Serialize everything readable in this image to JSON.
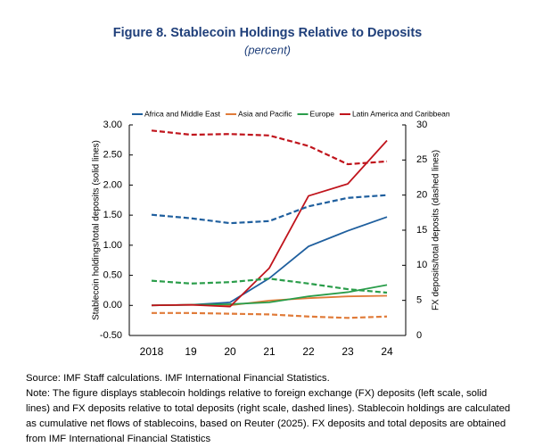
{
  "chart_data": {
    "type": "line",
    "title": "Figure 8. Stablecoin Holdings Relative to Deposits",
    "subtitle": "(percent)",
    "y_label": "Stablecoin holdings/total deposits (solid lines)",
    "y2_label": "FX deposits/total deposits (dashed lines)",
    "categories": [
      "2018",
      "19",
      "20",
      "21",
      "22",
      "23",
      "24"
    ],
    "ylim": [
      -0.5,
      3.0
    ],
    "yticks": [
      {
        "value": -0.5,
        "label": "-0.50"
      },
      {
        "value": 0,
        "label": "0.00"
      },
      {
        "value": 0.5,
        "label": "0.50"
      },
      {
        "value": 1.0,
        "label": "1.00"
      },
      {
        "value": 1.5,
        "label": "1.50"
      },
      {
        "value": 2.0,
        "label": "2.00"
      },
      {
        "value": 2.5,
        "label": "2.50"
      },
      {
        "value": 3.0,
        "label": "3.00"
      }
    ],
    "y2lim": [
      0,
      30
    ],
    "y2ticks": [
      0,
      5,
      10,
      15,
      20,
      25,
      30
    ],
    "legend": "top",
    "series": [
      {
        "name": "Africa and Middle East",
        "color": "#1f5f9e",
        "values": [
          0,
          0.01,
          0.05,
          0.45,
          0.98,
          1.24,
          1.47
        ]
      },
      {
        "name": "Asia and Pacific",
        "color": "#e07b39",
        "values": [
          0,
          0.01,
          0.0,
          0.08,
          0.12,
          0.15,
          0.16
        ]
      },
      {
        "name": "Europe",
        "color": "#2a9d4a",
        "values": [
          0,
          0.01,
          0.02,
          0.05,
          0.15,
          0.22,
          0.34
        ]
      },
      {
        "name": "Latin America and Caribbean",
        "color": "#c0141c",
        "values": [
          0,
          0.01,
          -0.02,
          0.62,
          1.82,
          2.02,
          2.74
        ]
      },
      {
        "color": "#1f5f9e",
        "axis": "y2",
        "dashed": true,
        "values": [
          17.2,
          16.7,
          16.0,
          16.3,
          18.4,
          19.6,
          20.0
        ]
      },
      {
        "color": "#e07b39",
        "axis": "y2",
        "dashed": true,
        "values": [
          3.2,
          3.2,
          3.1,
          3.0,
          2.7,
          2.5,
          2.7
        ]
      },
      {
        "color": "#2a9d4a",
        "axis": "y2",
        "dashed": true,
        "values": [
          7.8,
          7.4,
          7.6,
          8.1,
          7.4,
          6.6,
          6.1
        ]
      },
      {
        "color": "#c0141c",
        "axis": "y2",
        "dashed": true,
        "values": [
          29.2,
          28.6,
          28.7,
          28.5,
          27.0,
          24.4,
          24.8
        ]
      }
    ],
    "source": "Source: IMF Staff calculations. IMF International Financial Statistics.",
    "note": "Note: The figure displays stablecoin holdings relative to foreign exchange (FX) deposits (left scale, solid lines) and FX deposits relative to total deposits (right scale, dashed lines). Stablecoin holdings are calculated as cumulative net flows of stablecoins, based on Reuter (2025). FX deposits and total deposits are obtained from IMF International Financial Statistics"
  }
}
